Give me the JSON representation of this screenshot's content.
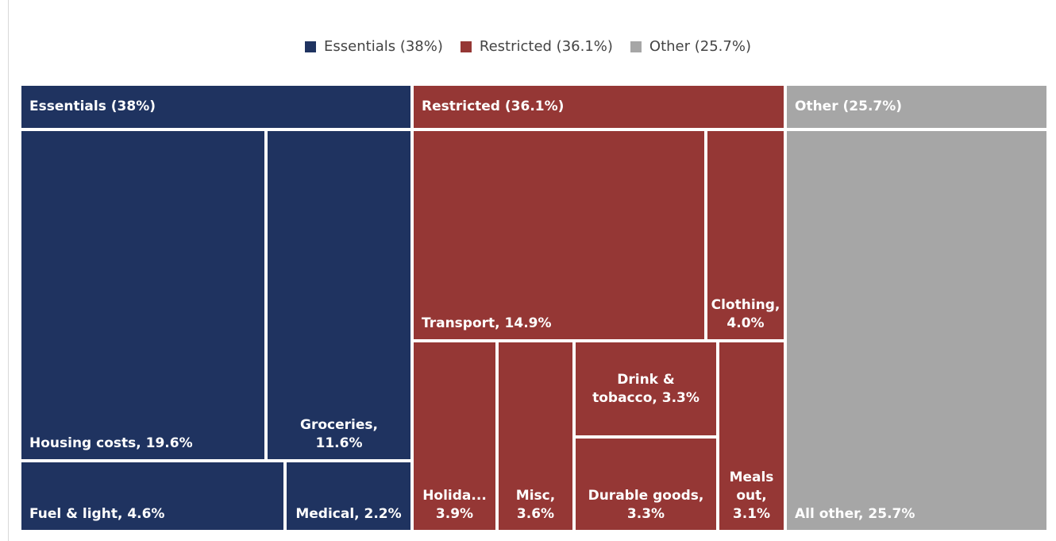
{
  "chart_data": {
    "type": "treemap",
    "legend": "top",
    "series": [
      {
        "name": "Essentials (38%)",
        "color": "#1f3360",
        "value": 38,
        "children": [
          {
            "label": "Housing costs, 19.6%",
            "value": 19.6
          },
          {
            "label": "Groceries, 11.6%",
            "value": 11.6
          },
          {
            "label": "Fuel & light, 4.6%",
            "value": 4.6
          },
          {
            "label": "Medical, 2.2%",
            "value": 2.2
          }
        ]
      },
      {
        "name": "Restricted (36.1%)",
        "color": "#953735",
        "value": 36.1,
        "children": [
          {
            "label": "Transport, 14.9%",
            "value": 14.9
          },
          {
            "label": "Clothing, 4.0%",
            "value": 4.0
          },
          {
            "label": "Holida... 3.9%",
            "value": 3.9
          },
          {
            "label": "Misc, 3.6%",
            "value": 3.6
          },
          {
            "label": "Drink & tobacco, 3.3%",
            "value": 3.3
          },
          {
            "label": "Durable goods, 3.3%",
            "value": 3.3
          },
          {
            "label": "Meals out, 3.1%",
            "value": 3.1
          }
        ]
      },
      {
        "name": "Other (25.7%)",
        "color": "#a6a6a6",
        "value": 25.7,
        "children": [
          {
            "label": "All other, 25.7%",
            "value": 25.7
          }
        ]
      }
    ]
  }
}
